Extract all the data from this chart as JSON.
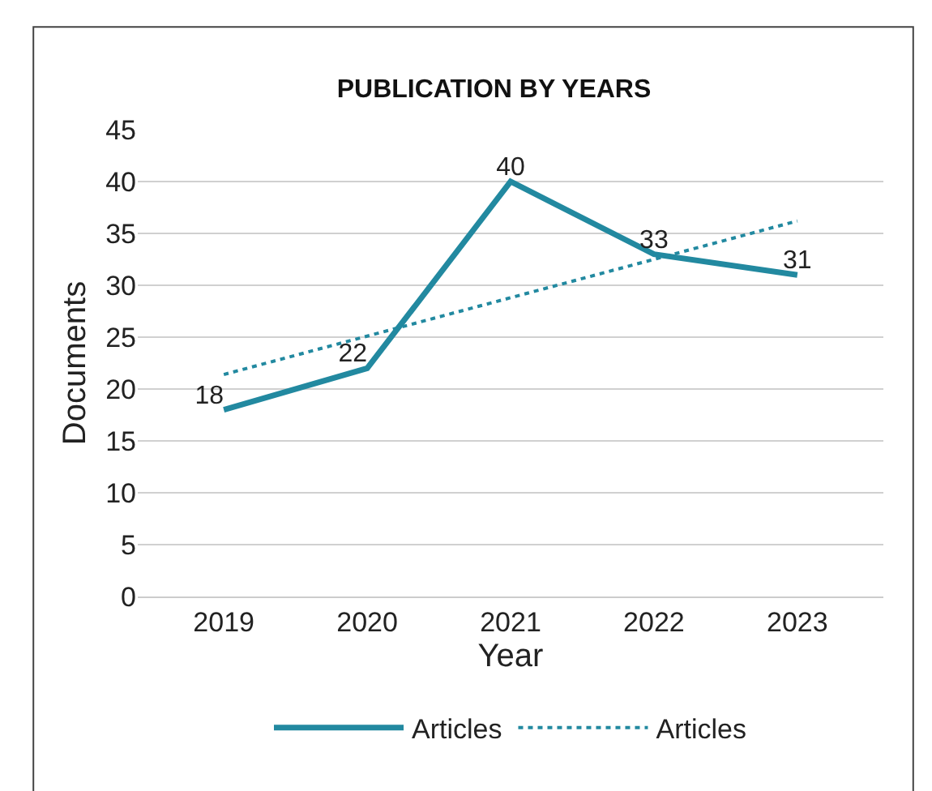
{
  "chart_data": {
    "type": "line",
    "title": "PUBLICATION BY YEARS",
    "xlabel": "Year",
    "ylabel": "Documents",
    "categories": [
      "2019",
      "2020",
      "2021",
      "2022",
      "2023"
    ],
    "series": [
      {
        "name": "Articles",
        "color": "#2289a0",
        "values": [
          18,
          22,
          40,
          33,
          31
        ],
        "value_labels": [
          "18",
          "22",
          "40",
          "33",
          "31"
        ],
        "line_style": "solid"
      },
      {
        "name": "Articles",
        "color": "#2289a0",
        "type": "line",
        "values": [
          21.4,
          25.1,
          28.8,
          32.5,
          36.2
        ],
        "line_style": "dotted"
      }
    ],
    "ylim": [
      0,
      45
    ],
    "yticks": [
      0,
      5,
      10,
      15,
      20,
      25,
      30,
      35,
      40,
      45
    ],
    "grid": "y",
    "legend": "bottom",
    "marker": "none"
  }
}
